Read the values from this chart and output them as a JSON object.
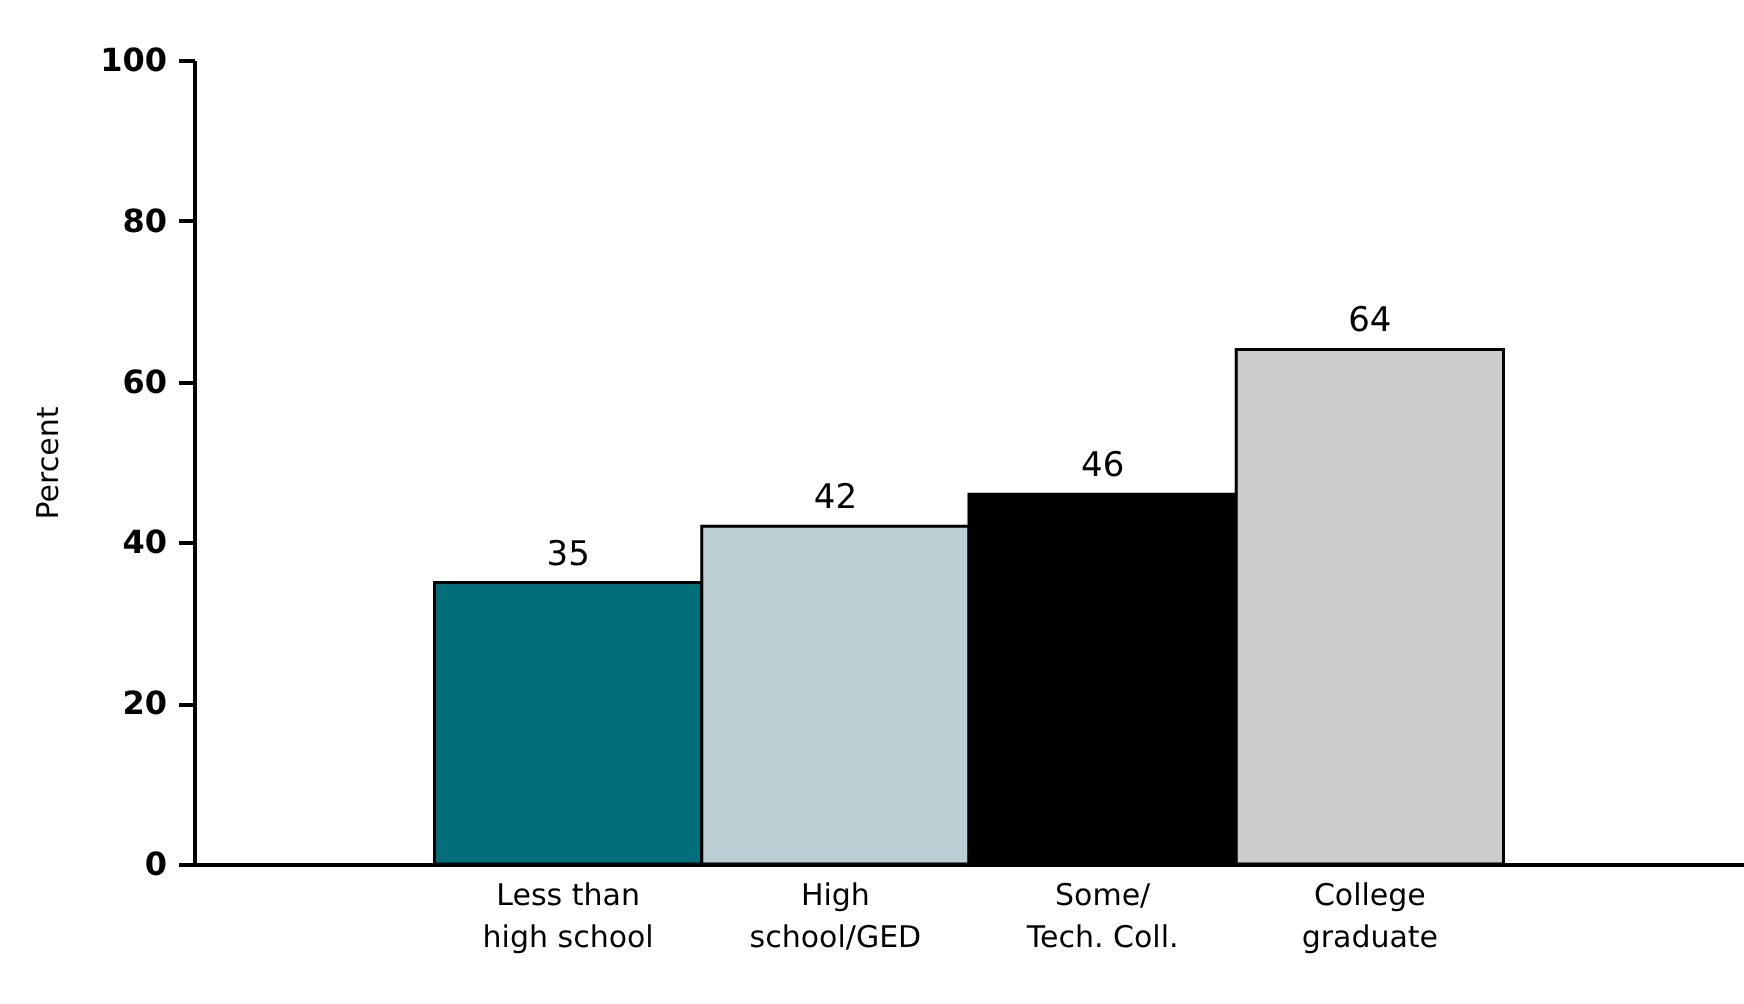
{
  "chart_data": {
    "type": "bar",
    "ylabel": "Percent",
    "categories": [
      "Less than\nhigh school",
      "High\nschool/GED",
      "Some/\nTech. Coll.",
      "College\ngraduate"
    ],
    "values": [
      35,
      42,
      46,
      64
    ],
    "colors": [
      "#006f7a",
      "#b9cfd4",
      "#000000",
      "#cccccc"
    ],
    "ylim": [
      0,
      100
    ],
    "yticks": [
      0,
      20,
      40,
      60,
      80,
      100
    ],
    "data_labels": true,
    "grid": false
  }
}
